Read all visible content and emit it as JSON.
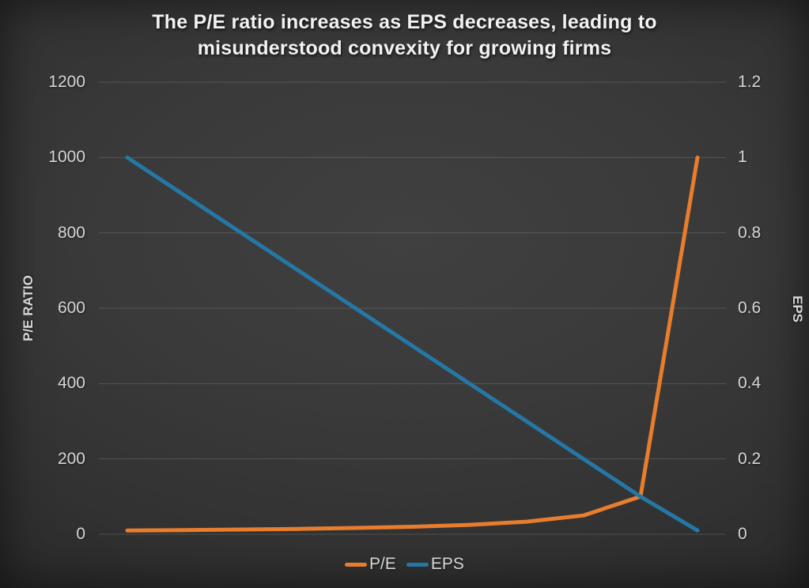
{
  "chart_data": {
    "type": "line",
    "title": "The P/E ratio increases as EPS decreases, leading to misunderstood convexity for growing firms",
    "x_axis": {
      "tick_labels_visible": false,
      "num_points": 11
    },
    "left_axis": {
      "label": "P/E RATIO",
      "min": 0,
      "max": 1200,
      "tick_values": [
        1200,
        1000,
        800,
        600,
        400,
        200,
        0
      ],
      "tick_labels": [
        "1200",
        "1000",
        "800",
        "600",
        "400",
        "200",
        "0"
      ]
    },
    "right_axis": {
      "label": "EPS",
      "min": 0,
      "max": 1.2,
      "tick_values": [
        1.2,
        1.0,
        0.8,
        0.6,
        0.4,
        0.2,
        0
      ],
      "tick_labels": [
        "1.2",
        "1",
        "0.8",
        "0.6",
        "0.4",
        "0.2",
        "0"
      ]
    },
    "series": [
      {
        "name": "P/E",
        "axis": "left",
        "color": "#E87D2E",
        "values": [
          10,
          11.1,
          12.5,
          14.3,
          16.7,
          20,
          25,
          33.3,
          50,
          100,
          1000
        ]
      },
      {
        "name": "EPS",
        "axis": "right",
        "color": "#2577A6",
        "values": [
          1.0,
          0.9,
          0.8,
          0.7,
          0.6,
          0.5,
          0.4,
          0.3,
          0.2,
          0.1,
          0.01
        ]
      }
    ],
    "legend": {
      "position": "bottom",
      "entries": [
        "P/E",
        "EPS"
      ]
    },
    "grid": {
      "horizontal": true,
      "vertical": false
    }
  },
  "colors": {
    "background_center": "#3E3E3E",
    "background_edge": "#1D1D1D",
    "gridline": "rgba(255,255,255,0.15)",
    "tick_text": "#D6D6D6",
    "title_text": "#F2F2F2",
    "pe_line": "#E87D2E",
    "eps_line": "#2577A6"
  }
}
